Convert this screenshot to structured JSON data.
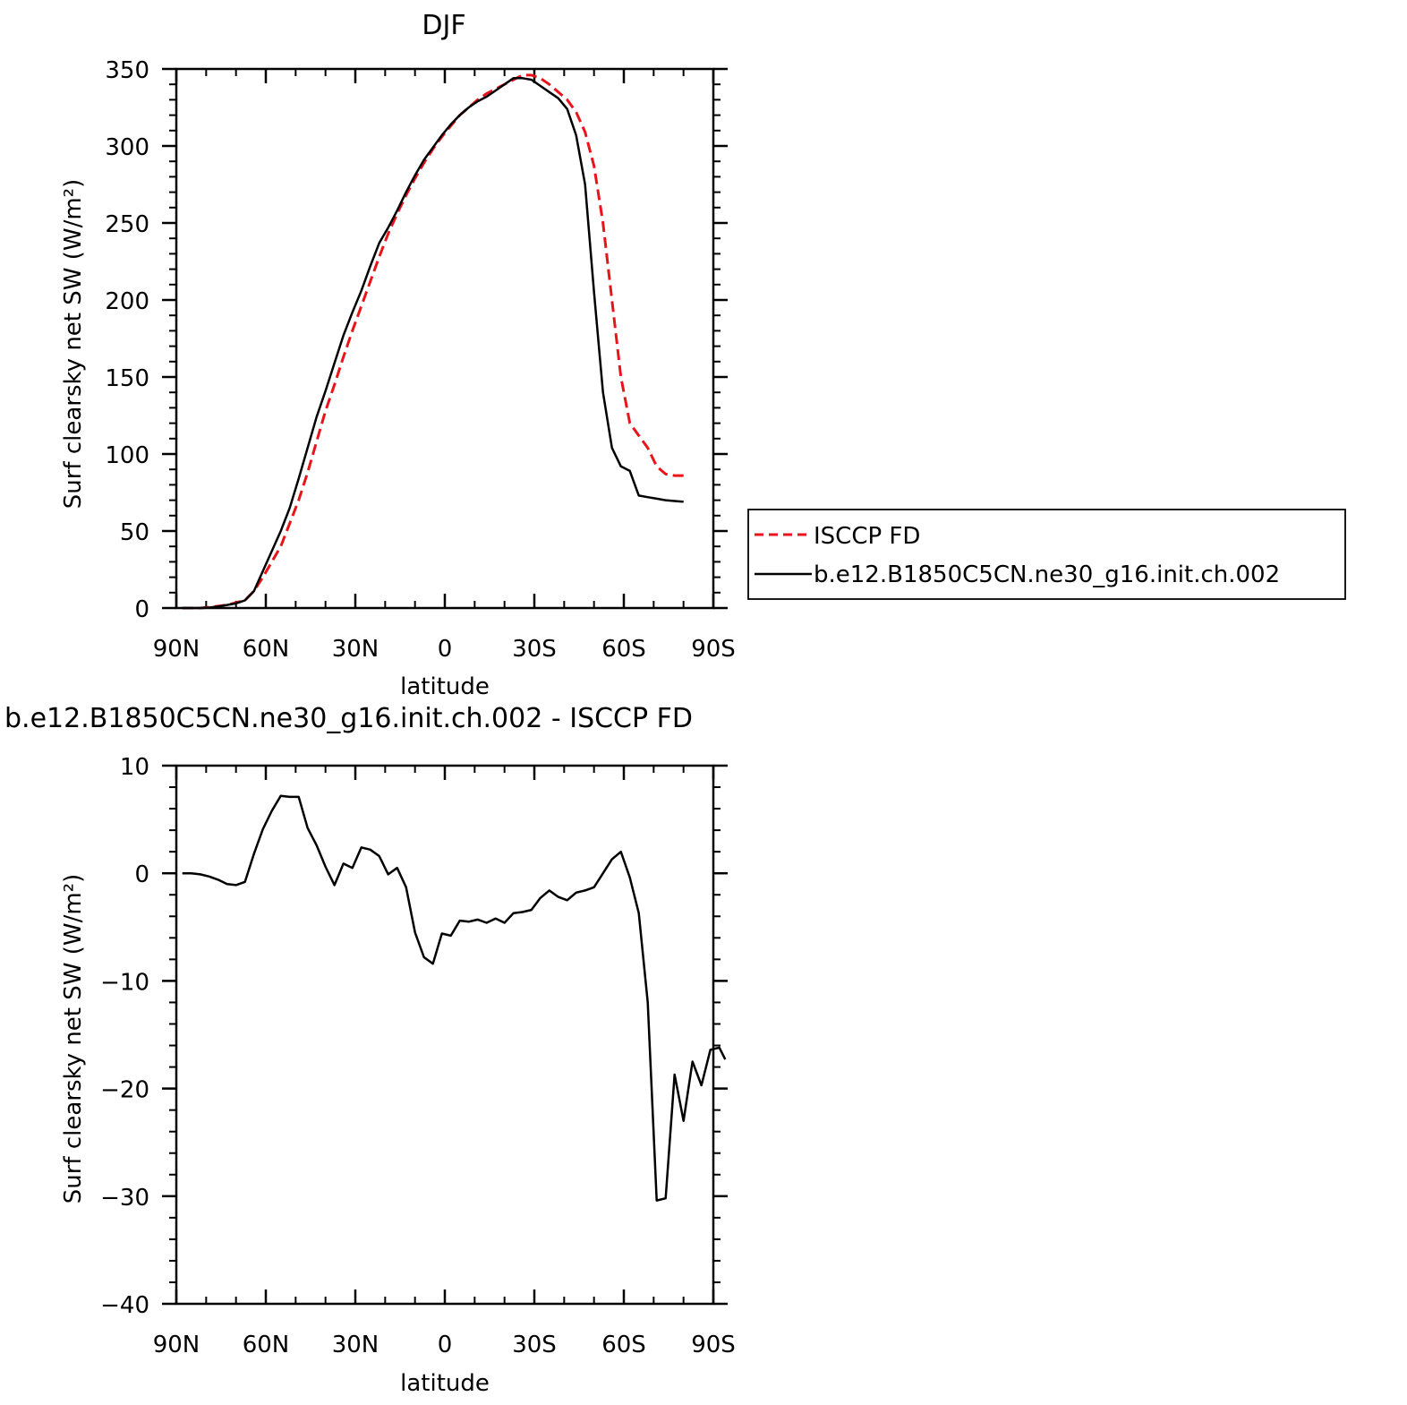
{
  "chart_data": [
    {
      "type": "line",
      "title": "DJF",
      "xlabel": "latitude",
      "ylabel": "Surf clearsky net SW (W/m²)",
      "xlim": [
        90,
        -90
      ],
      "ylim": [
        0,
        350
      ],
      "x_ticks": [
        90,
        60,
        30,
        0,
        -30,
        -60,
        -90
      ],
      "x_tick_labels": [
        "90N",
        "60N",
        "30N",
        "0",
        "30S",
        "60S",
        "90S"
      ],
      "y_ticks": [
        0,
        50,
        100,
        150,
        200,
        250,
        300,
        350
      ],
      "y_tick_labels": [
        "0",
        "50",
        "100",
        "150",
        "200",
        "250",
        "300",
        "350"
      ],
      "legend_position": "right",
      "series": [
        {
          "name": "ISCCP FD",
          "color": "#e8141a",
          "dash": "dashed",
          "points": [
            [
              88,
              0
            ],
            [
              85,
              0
            ],
            [
              82,
              0
            ],
            [
              79,
              0.5
            ],
            [
              76,
              1.2
            ],
            [
              73,
              2
            ],
            [
              70,
              3.5
            ],
            [
              67,
              5
            ],
            [
              64,
              11
            ],
            [
              61,
              20
            ],
            [
              58,
              30
            ],
            [
              55,
              40
            ],
            [
              52,
              55
            ],
            [
              49,
              70
            ],
            [
              46,
              88
            ],
            [
              43,
              108
            ],
            [
              40,
              128
            ],
            [
              37,
              145
            ],
            [
              34,
              163
            ],
            [
              31,
              180
            ],
            [
              28,
              196
            ],
            [
              25,
              212
            ],
            [
              22,
              228
            ],
            [
              19,
              243
            ],
            [
              16,
              256
            ],
            [
              13,
              268
            ],
            [
              10,
              279
            ],
            [
              7,
              289
            ],
            [
              4,
              298
            ],
            [
              1,
              306
            ],
            [
              -2,
              313
            ],
            [
              -5,
              320
            ],
            [
              -8,
              325
            ],
            [
              -11,
              330
            ],
            [
              -14,
              334
            ],
            [
              -17,
              337
            ],
            [
              -20,
              340
            ],
            [
              -23,
              343
            ],
            [
              -26,
              346
            ],
            [
              -29,
              346
            ],
            [
              -32,
              344
            ],
            [
              -35,
              340
            ],
            [
              -38,
              335
            ],
            [
              -41,
              330
            ],
            [
              -44,
              322
            ],
            [
              -47,
              309
            ],
            [
              -50,
              287
            ],
            [
              -53,
              250
            ],
            [
              -56,
              200
            ],
            [
              -59,
              150
            ],
            [
              -62,
              120
            ],
            [
              -65,
              112
            ],
            [
              -68,
              104
            ],
            [
              -71,
              92
            ],
            [
              -74,
              87
            ],
            [
              -77,
              86
            ],
            [
              -80,
              86
            ]
          ]
        },
        {
          "name": "b.e12.B1850C5CN.ne30_g16.init.ch.002",
          "color": "#000000",
          "dash": "solid",
          "points": [
            [
              88,
              0
            ],
            [
              85,
              0
            ],
            [
              82,
              0
            ],
            [
              79,
              0.3
            ],
            [
              76,
              1
            ],
            [
              73,
              2
            ],
            [
              70,
              3
            ],
            [
              67,
              5
            ],
            [
              64,
              11
            ],
            [
              61,
              24
            ],
            [
              58,
              37
            ],
            [
              55,
              50
            ],
            [
              52,
              65
            ],
            [
              49,
              84
            ],
            [
              46,
              104
            ],
            [
              43,
              124
            ],
            [
              40,
              141
            ],
            [
              37,
              159
            ],
            [
              34,
              177
            ],
            [
              31,
              192
            ],
            [
              28,
              206
            ],
            [
              25,
              222
            ],
            [
              22,
              237
            ],
            [
              19,
              247
            ],
            [
              16,
              258
            ],
            [
              13,
              270
            ],
            [
              10,
              281
            ],
            [
              7,
              291
            ],
            [
              4,
              299
            ],
            [
              1,
              307
            ],
            [
              -2,
              314
            ],
            [
              -5,
              320
            ],
            [
              -8,
              325
            ],
            [
              -11,
              329
            ],
            [
              -14,
              332
            ],
            [
              -17,
              336
            ],
            [
              -20,
              340
            ],
            [
              -23,
              344
            ],
            [
              -26,
              344
            ],
            [
              -29,
              343
            ],
            [
              -32,
              339
            ],
            [
              -35,
              335
            ],
            [
              -38,
              331
            ],
            [
              -41,
              324
            ],
            [
              -44,
              307
            ],
            [
              -47,
              275
            ],
            [
              -50,
              205
            ],
            [
              -53,
              140
            ],
            [
              -56,
              104
            ],
            [
              -59,
              92
            ],
            [
              -62,
              89
            ],
            [
              -65,
              73
            ],
            [
              -68,
              72
            ],
            [
              -71,
              71
            ],
            [
              -74,
              70
            ],
            [
              -77,
              69.5
            ],
            [
              -80,
              69
            ]
          ]
        }
      ]
    },
    {
      "type": "line",
      "title": "b.e12.B1850C5CN.ne30_g16.init.ch.002 - ISCCP FD",
      "xlabel": "latitude",
      "ylabel": "Surf clearsky net SW (W/m²)",
      "xlim": [
        90,
        -90
      ],
      "ylim": [
        -40,
        10
      ],
      "x_ticks": [
        90,
        60,
        30,
        0,
        -30,
        -60,
        -90
      ],
      "x_tick_labels": [
        "90N",
        "60N",
        "30N",
        "0",
        "30S",
        "60S",
        "90S"
      ],
      "y_ticks": [
        10,
        0,
        -10,
        -20,
        -30,
        -40
      ],
      "y_tick_labels": [
        "10",
        "0",
        "−10",
        "−20",
        "−30",
        "−40"
      ],
      "series": [
        {
          "color": "#000000",
          "dash": "solid",
          "points": [
            [
              88,
              0
            ],
            [
              85,
              0
            ],
            [
              82,
              -0.1
            ],
            [
              79,
              -0.3
            ],
            [
              76,
              -0.6
            ],
            [
              73,
              -1
            ],
            [
              70,
              -1.1
            ],
            [
              67,
              -0.8
            ],
            [
              64,
              1.8
            ],
            [
              61,
              4.1
            ],
            [
              58,
              5.8
            ],
            [
              55,
              7.2
            ],
            [
              52,
              7.1
            ],
            [
              49,
              7.1
            ],
            [
              46,
              4.2
            ],
            [
              43,
              2.6
            ],
            [
              40,
              0.6
            ],
            [
              37,
              -1.1
            ],
            [
              34,
              0.9
            ],
            [
              31,
              0.5
            ],
            [
              28,
              2.4
            ],
            [
              25,
              2.2
            ],
            [
              22,
              1.6
            ],
            [
              19,
              -0.1
            ],
            [
              16,
              0.5
            ],
            [
              13,
              -1.3
            ],
            [
              10,
              -5.5
            ],
            [
              7,
              -7.8
            ],
            [
              4,
              -8.4
            ],
            [
              1,
              -5.6
            ],
            [
              -2,
              -5.8
            ],
            [
              -5,
              -4.4
            ],
            [
              -8,
              -4.5
            ],
            [
              -11,
              -4.3
            ],
            [
              -14,
              -4.6
            ],
            [
              -17,
              -4.2
            ],
            [
              -20,
              -4.6
            ],
            [
              -23,
              -3.7
            ],
            [
              -26,
              -3.6
            ],
            [
              -29,
              -3.4
            ],
            [
              -32,
              -2.3
            ],
            [
              -35,
              -1.6
            ],
            [
              -38,
              -2.2
            ],
            [
              -41,
              -2.5
            ],
            [
              -44,
              -1.8
            ],
            [
              -47,
              -1.6
            ],
            [
              -50,
              -1.3
            ],
            [
              -53,
              0
            ],
            [
              -56,
              1.3
            ],
            [
              -59,
              2
            ],
            [
              -62,
              -0.4
            ],
            [
              -65,
              -3.7
            ],
            [
              -68,
              -12
            ],
            [
              -71,
              -30.4
            ],
            [
              -74,
              -30.2
            ],
            [
              -77,
              -18.7
            ],
            [
              -80,
              -23
            ],
            [
              -83,
              -17.5
            ],
            [
              -86,
              -19.7
            ],
            [
              -89,
              -16.4
            ],
            [
              -92,
              -16.2
            ],
            [
              -94,
              -17.3
            ]
          ]
        }
      ]
    }
  ]
}
